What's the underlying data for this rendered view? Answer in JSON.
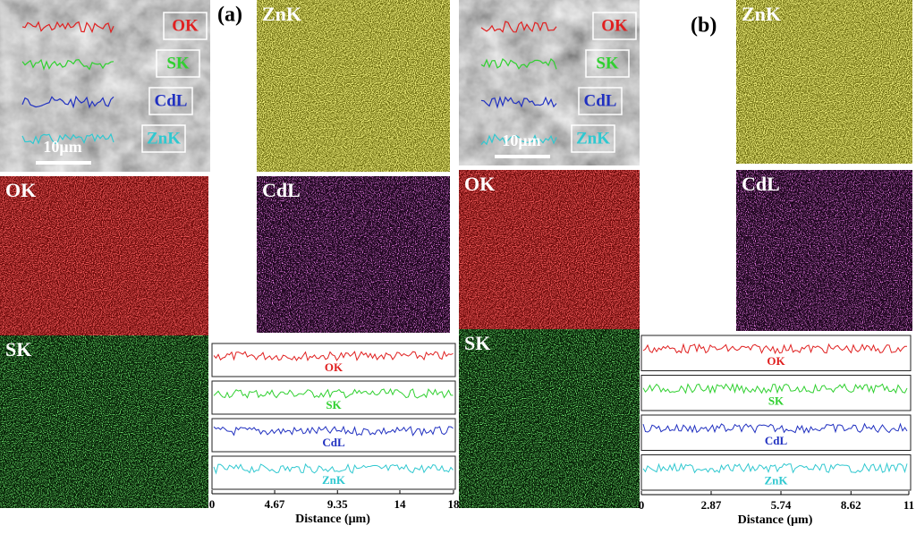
{
  "panels": [
    {
      "label": "(a)",
      "sem": {
        "scale_bar": "10μm",
        "legend": [
          "OK",
          "SK",
          "CdL",
          "ZnK"
        ]
      },
      "maps": [
        "ZnK",
        "OK",
        "CdL",
        "SK"
      ],
      "line_scan": {
        "traces": [
          "OK",
          "SK",
          "CdL",
          "ZnK"
        ],
        "x_axis": {
          "label": "Distance (μm)",
          "xlim": [
            0,
            18
          ],
          "xticks": [
            0,
            4.67,
            9.35,
            14,
            18
          ]
        }
      }
    },
    {
      "label": "(b)",
      "sem": {
        "scale_bar": "10μm",
        "legend": [
          "OK",
          "SK",
          "CdL",
          "ZnK"
        ]
      },
      "maps": [
        "ZnK",
        "OK",
        "CdL",
        "SK"
      ],
      "line_scan": {
        "traces": [
          "OK",
          "SK",
          "CdL",
          "ZnK"
        ],
        "x_axis": {
          "label": "Distance (μm)",
          "xlim": [
            0,
            11
          ],
          "xticks": [
            0,
            2.87,
            5.74,
            8.62,
            11
          ]
        }
      }
    }
  ]
}
